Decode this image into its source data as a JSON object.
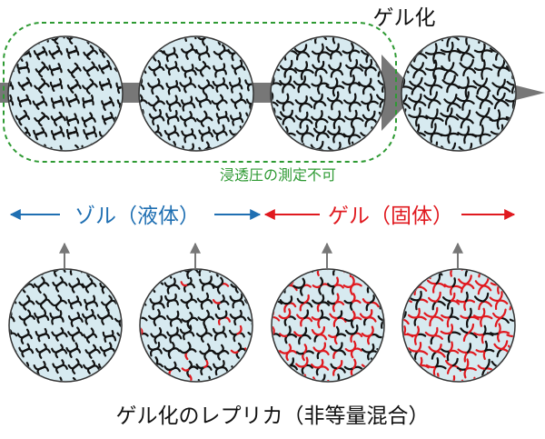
{
  "title": "ゲル化",
  "note": "浸透圧の測定不可",
  "sol_label": "ゾル（液体）",
  "gel_label": "ゲル（固体）",
  "caption": "ゲル化のレプリカ（非等量混合）",
  "colors": {
    "sol": "#1f6fb2",
    "gel": "#e0191f",
    "note": "#2e9a33",
    "circle_fill": "#d7eaf0",
    "process_arrow": "#777777",
    "strand": "#111111"
  },
  "top_row": [
    {
      "state": "sol",
      "connectivity": 0.0
    },
    {
      "state": "sol",
      "connectivity": 0.3
    },
    {
      "state": "sol",
      "connectivity": 0.75
    },
    {
      "state": "gel",
      "connectivity": 1.0
    }
  ],
  "bottom_row": [
    {
      "state": "sol",
      "red_fraction": 0.0
    },
    {
      "state": "sol",
      "red_fraction": 0.12
    },
    {
      "state": "gel",
      "red_fraction": 0.5
    },
    {
      "state": "gel",
      "red_fraction": 0.7
    }
  ]
}
